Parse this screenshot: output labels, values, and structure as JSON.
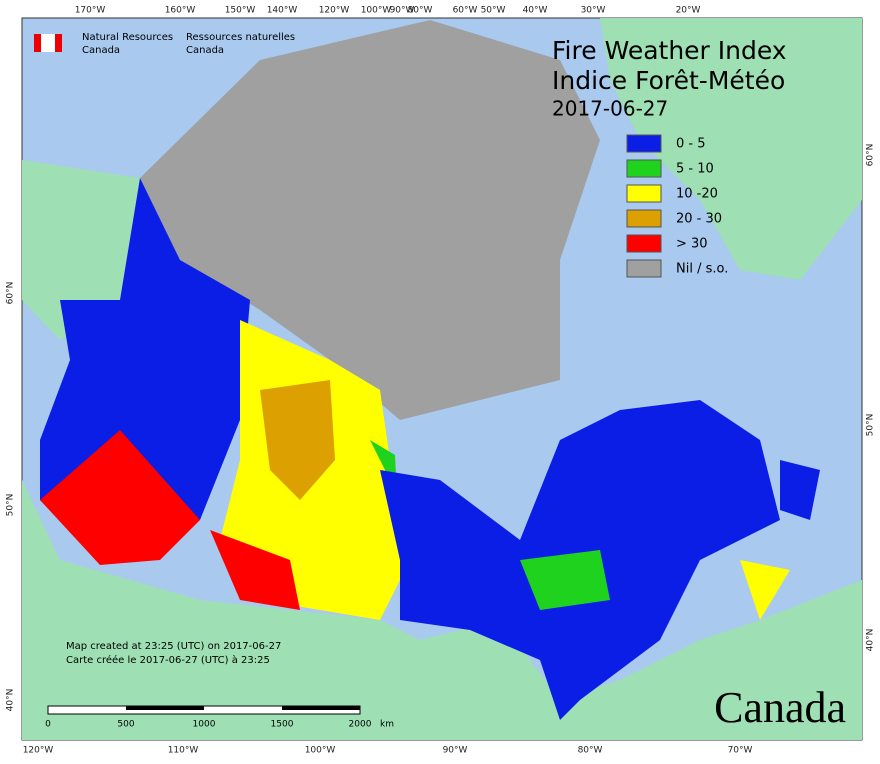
{
  "agency": {
    "en_line1": "Natural Resources",
    "en_line2": "Canada",
    "fr_line1": "Ressources naturelles",
    "fr_line2": "Canada"
  },
  "title": {
    "line1": "Fire Weather Index",
    "line2": "Indice Forêt-Météo",
    "date": "2017-06-27"
  },
  "legend": {
    "items": [
      {
        "label": "0 - 5",
        "color": "#0a1ee6"
      },
      {
        "label": "5 - 10",
        "color": "#1ed21e"
      },
      {
        "label": "10 -20",
        "color": "#ffff00"
      },
      {
        "label": "20 - 30",
        "color": "#dca000"
      },
      {
        "label": "> 30",
        "color": "#ff0000"
      },
      {
        "label": "Nil / s.o.",
        "color": "#a0a0a0"
      }
    ]
  },
  "graticule": {
    "top": [
      "170°W",
      "160°W",
      "150°W",
      "140°W",
      "120°W",
      "100°W",
      "90°W",
      "80°W",
      "60°W",
      "50°W",
      "40°W",
      "30°W",
      "20°W"
    ],
    "bottom": [
      "120°W",
      "110°W",
      "100°W",
      "90°W",
      "80°W",
      "70°W"
    ],
    "left": [
      "60°N",
      "50°N",
      "40°N"
    ],
    "right": [
      "60°N",
      "50°N",
      "40°N"
    ]
  },
  "footer": {
    "created_en": "Map created at 23:25 (UTC) on 2017-06-27",
    "created_fr": "Carte créée le 2017-06-27 (UTC) à 23:25"
  },
  "scale": {
    "labels": [
      "0",
      "500",
      "1000",
      "1500",
      "2000"
    ],
    "unit": "km"
  },
  "wordmark": "Canada"
}
